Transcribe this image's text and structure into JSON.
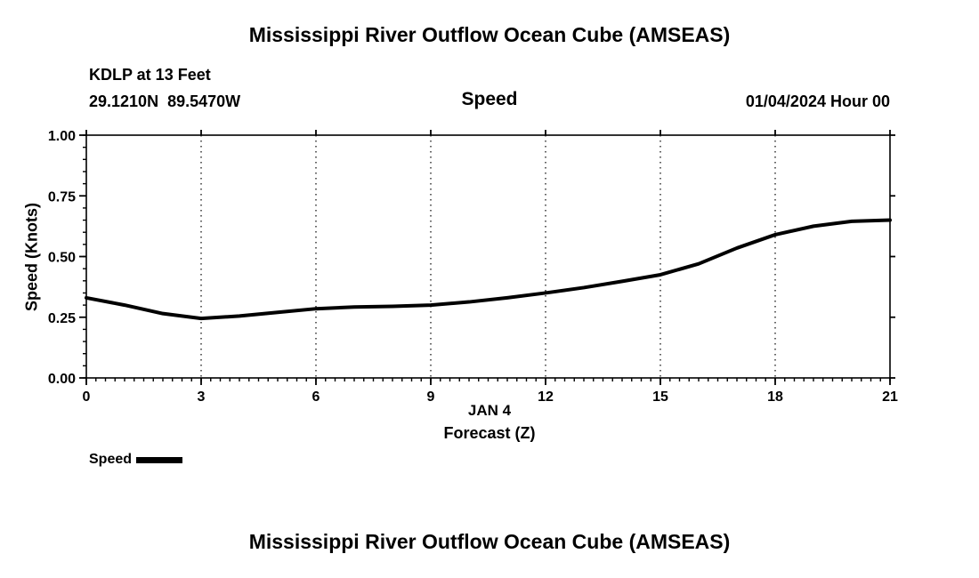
{
  "header": {
    "title": "Mississippi River Outflow Ocean Cube (AMSEAS)",
    "station": "KDLP at 13 Feet",
    "coords": "29.1210N  89.5470W",
    "plot_title": "Speed",
    "datetime": "01/04/2024 Hour 00"
  },
  "chart_data": {
    "type": "line",
    "title": "Speed",
    "ylabel": "Speed (Knots)",
    "xlabel_line1": "JAN 4",
    "xlabel_line2": "Forecast (Z)",
    "xlim": [
      0,
      21
    ],
    "ylim": [
      0.0,
      1.0
    ],
    "x_ticks": [
      0,
      3,
      6,
      9,
      12,
      15,
      18,
      21
    ],
    "y_ticks": [
      0.0,
      0.25,
      0.5,
      0.75,
      1.0
    ],
    "x_minor_step": 0.25,
    "y_minor_step": 0.05,
    "grid": "vertical-dotted",
    "line_color": "#000000",
    "line_width": 4,
    "legend": [
      {
        "label": "Speed",
        "color": "#000000"
      }
    ],
    "series": [
      {
        "name": "Speed",
        "x": [
          0,
          1,
          2,
          3,
          4,
          5,
          6,
          7,
          8,
          9,
          10,
          11,
          12,
          13,
          14,
          15,
          16,
          17,
          18,
          19,
          20,
          21
        ],
        "values": [
          0.33,
          0.3,
          0.265,
          0.245,
          0.255,
          0.27,
          0.285,
          0.292,
          0.295,
          0.3,
          0.313,
          0.33,
          0.35,
          0.372,
          0.398,
          0.425,
          0.47,
          0.535,
          0.59,
          0.625,
          0.645,
          0.65
        ]
      }
    ]
  },
  "footer": {
    "title": "Mississippi River Outflow Ocean Cube (AMSEAS)"
  }
}
